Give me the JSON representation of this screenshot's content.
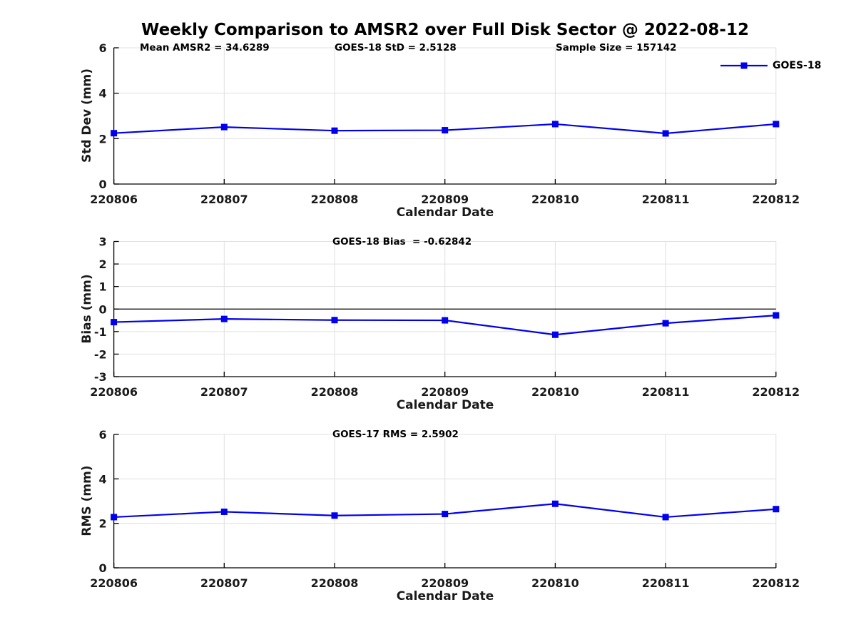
{
  "title": "Weekly Comparison to AMSR2 over Full Disk Sector @ 2022-08-12",
  "legend": {
    "label": "GOES-18"
  },
  "colors": {
    "line": "#0000EE",
    "grid": "#E0E0E0",
    "axis": "#000000",
    "tick_text": "#1a1a1a"
  },
  "chart_data": [
    {
      "type": "line",
      "name": "stddev",
      "ylabel": "Std Dev (mm)",
      "xlabel": "Calendar Date",
      "categories": [
        "220806",
        "220807",
        "220808",
        "220809",
        "220810",
        "220811",
        "220812"
      ],
      "series": [
        {
          "name": "GOES-18",
          "values": [
            2.24,
            2.51,
            2.35,
            2.37,
            2.64,
            2.23,
            2.64
          ]
        }
      ],
      "ylim": [
        0,
        6
      ],
      "yticks": [
        0,
        2,
        4,
        6
      ],
      "zero_line": false,
      "grid": true,
      "legend_position": "northeast-outside",
      "annotations": [
        {
          "text": "Mean AMSR2 = 34.6289"
        },
        {
          "text": "GOES-18 StD = 2.5128"
        },
        {
          "text": "Sample Size = 157142"
        }
      ]
    },
    {
      "type": "line",
      "name": "bias",
      "ylabel": "Bias (mm)",
      "xlabel": "Calendar Date",
      "categories": [
        "220806",
        "220807",
        "220808",
        "220809",
        "220810",
        "220811",
        "220812"
      ],
      "series": [
        {
          "name": "GOES-18",
          "values": [
            -0.58,
            -0.44,
            -0.49,
            -0.5,
            -1.14,
            -0.63,
            -0.28
          ]
        }
      ],
      "ylim": [
        -3,
        3
      ],
      "yticks": [
        -3,
        -2,
        -1,
        0,
        1,
        2,
        3
      ],
      "zero_line": true,
      "grid": true,
      "annotations": [
        {
          "text": "GOES-18 Bias  = -0.62842"
        }
      ]
    },
    {
      "type": "line",
      "name": "rms",
      "ylabel": "RMS (mm)",
      "xlabel": "Calendar Date",
      "categories": [
        "220806",
        "220807",
        "220808",
        "220809",
        "220810",
        "220811",
        "220812"
      ],
      "series": [
        {
          "name": "GOES-18",
          "values": [
            2.28,
            2.52,
            2.35,
            2.42,
            2.88,
            2.28,
            2.64
          ]
        }
      ],
      "ylim": [
        0,
        6
      ],
      "yticks": [
        0,
        2,
        4,
        6
      ],
      "zero_line": false,
      "grid": true,
      "annotations": [
        {
          "text": "GOES-17 RMS = 2.5902"
        }
      ]
    }
  ]
}
